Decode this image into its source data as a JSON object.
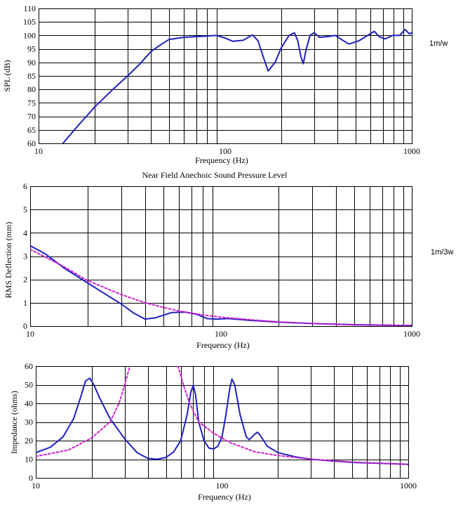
{
  "colors": {
    "measured": "#1f1fc0",
    "model": "#d020d0",
    "grid": "#000000"
  },
  "chart_data": [
    {
      "type": "line",
      "title": "",
      "xlabel": "Frequency (Hz)",
      "ylabel": "SPL (dB)",
      "side_label": "1m/w",
      "caption": "Near Field Anechoic Sound Pressure Level",
      "xscale": "log",
      "xlim": [
        10,
        1000
      ],
      "ylim": [
        60,
        110
      ],
      "x_ticks": [
        "10",
        "100",
        "1000"
      ],
      "y_ticks": [
        "60",
        "65",
        "70",
        "75",
        "80",
        "85",
        "90",
        "95",
        "100",
        "105",
        "110"
      ],
      "grid": true,
      "series": [
        {
          "color": "#1f1fc0",
          "style": "solid",
          "points": [
            [
              13.5,
              60
            ],
            [
              16,
              66
            ],
            [
              20,
              73.5
            ],
            [
              25,
              80
            ],
            [
              30,
              85
            ],
            [
              35,
              89.5
            ],
            [
              40,
              94
            ],
            [
              45,
              96.5
            ],
            [
              50,
              98.5
            ],
            [
              60,
              99.3
            ],
            [
              80,
              99.8
            ],
            [
              90,
              100
            ],
            [
              100,
              99
            ],
            [
              110,
              97.8
            ],
            [
              125,
              98.2
            ],
            [
              140,
              100.2
            ],
            [
              150,
              98
            ],
            [
              160,
              92
            ],
            [
              170,
              86.8
            ],
            [
              185,
              90
            ],
            [
              200,
              95.5
            ],
            [
              220,
              100
            ],
            [
              235,
              101
            ],
            [
              245,
              98
            ],
            [
              255,
              92
            ],
            [
              262,
              89.5
            ],
            [
              272,
              95
            ],
            [
              285,
              100
            ],
            [
              300,
              101
            ],
            [
              320,
              99.3
            ],
            [
              350,
              99.5
            ],
            [
              390,
              100
            ],
            [
              420,
              98.5
            ],
            [
              460,
              96.8
            ],
            [
              520,
              98
            ],
            [
              580,
              100
            ],
            [
              630,
              101.5
            ],
            [
              670,
              99.5
            ],
            [
              720,
              98.7
            ],
            [
              790,
              100
            ],
            [
              860,
              100
            ],
            [
              920,
              102.2
            ],
            [
              970,
              100.6
            ],
            [
              1000,
              101
            ]
          ]
        }
      ]
    },
    {
      "type": "line",
      "title": "",
      "xlabel": "Frequency (Hz)",
      "ylabel": "RMS Deflection (mm)",
      "side_label": "1m/3w",
      "xscale": "log",
      "xlim": [
        10,
        1000
      ],
      "ylim": [
        0,
        6
      ],
      "x_ticks": [
        "10",
        "100",
        "1000"
      ],
      "y_ticks": [
        "0",
        "1",
        "2",
        "3",
        "4",
        "5",
        "6"
      ],
      "grid": true,
      "series": [
        {
          "color": "#1f1fc0",
          "style": "solid",
          "points": [
            [
              10,
              3.45
            ],
            [
              12,
              3.1
            ],
            [
              15,
              2.5
            ],
            [
              20,
              1.85
            ],
            [
              25,
              1.35
            ],
            [
              30,
              0.95
            ],
            [
              35,
              0.55
            ],
            [
              40,
              0.3
            ],
            [
              45,
              0.35
            ],
            [
              55,
              0.58
            ],
            [
              65,
              0.6
            ],
            [
              75,
              0.5
            ],
            [
              85,
              0.32
            ],
            [
              95,
              0.3
            ],
            [
              110,
              0.32
            ],
            [
              140,
              0.25
            ],
            [
              200,
              0.17
            ],
            [
              300,
              0.11
            ],
            [
              500,
              0.06
            ],
            [
              1000,
              0.02
            ]
          ]
        },
        {
          "color": "#d020d0",
          "style": "dashed",
          "points": [
            [
              10,
              3.3
            ],
            [
              15,
              2.55
            ],
            [
              20,
              1.95
            ],
            [
              30,
              1.35
            ],
            [
              40,
              1.0
            ],
            [
              50,
              0.8
            ],
            [
              60,
              0.65
            ],
            [
              80,
              0.48
            ],
            [
              100,
              0.38
            ],
            [
              150,
              0.26
            ],
            [
              200,
              0.18
            ],
            [
              300,
              0.11
            ],
            [
              500,
              0.05
            ],
            [
              1000,
              0.02
            ]
          ]
        }
      ]
    },
    {
      "type": "line",
      "title": "",
      "xlabel": "Frequency (Hz)",
      "ylabel": "Impedance (ohms)",
      "side_label": "",
      "xscale": "log",
      "xlim": [
        10,
        1000
      ],
      "ylim": [
        0,
        60
      ],
      "x_ticks": [
        "10",
        "100",
        "1000"
      ],
      "y_ticks": [
        "0",
        "10",
        "20",
        "30",
        "40",
        "50",
        "60"
      ],
      "grid": true,
      "series": [
        {
          "color": "#1f1fc0",
          "style": "solid",
          "points": [
            [
              10,
              13.5
            ],
            [
              12,
              16.5
            ],
            [
              14,
              22
            ],
            [
              16,
              32
            ],
            [
              17.5,
              44
            ],
            [
              18.5,
              52
            ],
            [
              19.5,
              53.5
            ],
            [
              20.5,
              50
            ],
            [
              22,
              43
            ],
            [
              25,
              32
            ],
            [
              30,
              21
            ],
            [
              35,
              13.5
            ],
            [
              40,
              10.5
            ],
            [
              45,
              10
            ],
            [
              50,
              11
            ],
            [
              55,
              14
            ],
            [
              60,
              20
            ],
            [
              65,
              34
            ],
            [
              68,
              46
            ],
            [
              70,
              49.5
            ],
            [
              72,
              45
            ],
            [
              75,
              30
            ],
            [
              80,
              20
            ],
            [
              85,
              16
            ],
            [
              90,
              15.5
            ],
            [
              95,
              17
            ],
            [
              100,
              22
            ],
            [
              105,
              34
            ],
            [
              110,
              48
            ],
            [
              113,
              53
            ],
            [
              117,
              50
            ],
            [
              125,
              34
            ],
            [
              135,
              22
            ],
            [
              140,
              20.5
            ],
            [
              150,
              23.5
            ],
            [
              155,
              24.5
            ],
            [
              160,
              23
            ],
            [
              175,
              17
            ],
            [
              200,
              13.5
            ],
            [
              250,
              11.2
            ],
            [
              300,
              10
            ],
            [
              400,
              9
            ],
            [
              500,
              8.3
            ],
            [
              700,
              7.8
            ],
            [
              1000,
              7.3
            ]
          ]
        },
        {
          "color": "#d020d0",
          "style": "dashed",
          "points": [
            [
              10,
              11.5
            ],
            [
              15,
              15
            ],
            [
              20,
              21.5
            ],
            [
              25,
              30
            ],
            [
              28,
              40
            ],
            [
              30,
              50
            ],
            [
              32,
              60
            ]
          ]
        },
        {
          "color": "#d020d0",
          "style": "dashed",
          "points": [
            [
              58,
              60
            ],
            [
              62,
              50
            ],
            [
              67,
              40
            ],
            [
              75,
              30
            ],
            [
              90,
              24
            ],
            [
              110,
              19
            ],
            [
              150,
              14
            ],
            [
              200,
              12
            ],
            [
              300,
              10
            ],
            [
              500,
              8.5
            ],
            [
              700,
              7.8
            ],
            [
              1000,
              7.3
            ]
          ]
        }
      ]
    }
  ]
}
